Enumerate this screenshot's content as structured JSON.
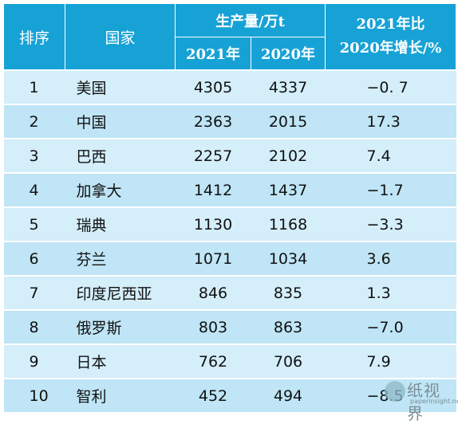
{
  "headers": {
    "rank": "排序",
    "country": "国家",
    "production": "生产量/万t",
    "year1": "2021年",
    "year2": "2020年",
    "change_line1": "2021年比",
    "change_line2": "2020年增长/%"
  },
  "rows": [
    {
      "rank": "1",
      "country": "美国",
      "y2021": "4305",
      "y2020": "4337",
      "change": "−0. 7"
    },
    {
      "rank": "2",
      "country": "中国",
      "y2021": "2363",
      "y2020": "2015",
      "change": "17.3"
    },
    {
      "rank": "3",
      "country": "巴西",
      "y2021": "2257",
      "y2020": "2102",
      "change": "7.4"
    },
    {
      "rank": "4",
      "country": "加拿大",
      "y2021": "1412",
      "y2020": "1437",
      "change": "−1.7"
    },
    {
      "rank": "5",
      "country": "瑞典",
      "y2021": "1130",
      "y2020": "1168",
      "change": "−3.3"
    },
    {
      "rank": "6",
      "country": "芬兰",
      "y2021": "1071",
      "y2020": "1034",
      "change": "3.6"
    },
    {
      "rank": "7",
      "country": "印度尼西亚",
      "y2021": "846",
      "y2020": "835",
      "change": "1.3"
    },
    {
      "rank": "8",
      "country": "俄罗斯",
      "y2021": "803",
      "y2020": "863",
      "change": "−7.0"
    },
    {
      "rank": "9",
      "country": "日本",
      "y2021": "762",
      "y2020": "706",
      "change": "7.9"
    },
    {
      "rank": "10",
      "country": "智利",
      "y2021": "452",
      "y2020": "494",
      "change": "−8.5"
    }
  ],
  "watermark": {
    "text": "纸视界",
    "sub": "paperinsight.net"
  },
  "colors": {
    "header": "#17a2d6",
    "row_odd": "#d4eefa",
    "row_even": "#bfe5f6"
  }
}
